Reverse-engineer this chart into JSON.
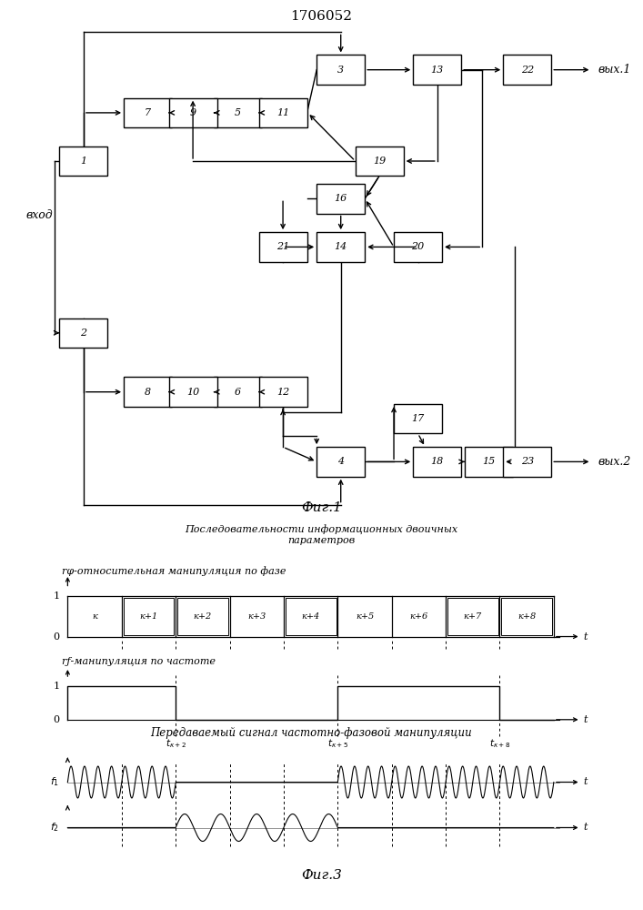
{
  "title": "1706052",
  "fig1_label": "Фиг.1",
  "fig3_label": "Фиг.3",
  "text_seq_line1": "Последовательности информационных двоичных",
  "text_seq_line2": "параметров",
  "text_rphi": "rφ-относительная манипуляция по фазе",
  "text_rf": "rƒ-манипуляция по частоте",
  "text_signal": "Передаваемый сигнал частотно-фазовой манипуляции",
  "vhod": "вход",
  "vyx1": "вых.1",
  "vyx2": "вых.2",
  "seg_labels": [
    "к",
    "к+1",
    "к+2",
    "к+3",
    "к+4",
    "к+5",
    "к+6",
    "к+7",
    "к+8"
  ],
  "has_box": [
    false,
    true,
    true,
    false,
    true,
    false,
    false,
    true,
    true
  ],
  "bg_color": "#ffffff"
}
